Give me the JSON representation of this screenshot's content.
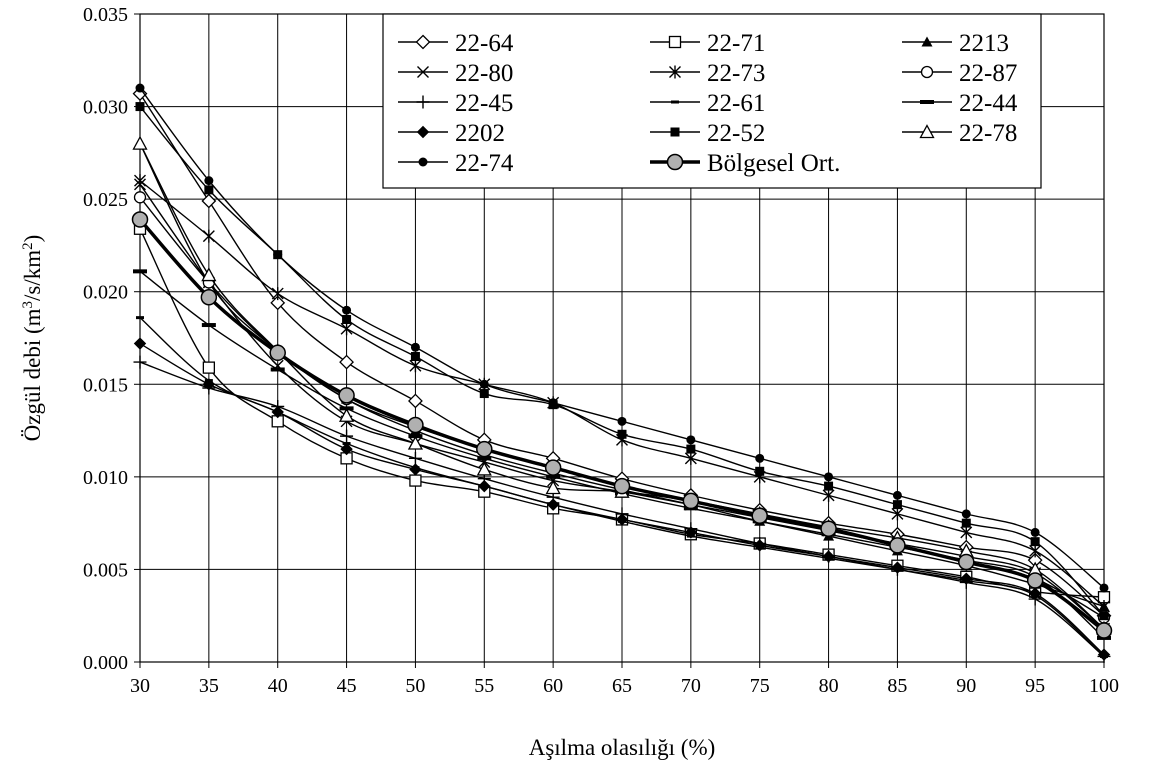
{
  "chart_data": {
    "type": "line",
    "xlabel": "Aşılma olasılığı (%)",
    "ylabel": {
      "prefix": "Özgül debi (m",
      "sup1": "3",
      "mid": "/s/km",
      "sup2": "2",
      "suffix": ")"
    },
    "xlim": [
      30,
      100
    ],
    "ylim": [
      0,
      0.035
    ],
    "x_ticks": [
      "30",
      "35",
      "40",
      "45",
      "50",
      "55",
      "60",
      "65",
      "70",
      "75",
      "80",
      "85",
      "90",
      "95",
      "100"
    ],
    "y_ticks": [
      "0.000",
      "0.005",
      "0.010",
      "0.015",
      "0.020",
      "0.025",
      "0.030",
      "0.035"
    ],
    "grid": true,
    "legend_position": "top-right",
    "x": [
      30,
      35,
      40,
      45,
      50,
      55,
      60,
      65,
      70,
      75,
      80,
      85,
      90,
      95,
      100
    ],
    "series": [
      {
        "name": "22-64",
        "marker": "diamond-open",
        "values": [
          0.0307,
          0.0249,
          0.0194,
          0.0162,
          0.0141,
          0.012,
          0.011,
          0.0099,
          0.009,
          0.0082,
          0.0075,
          0.0069,
          0.0062,
          0.0055,
          0.0025
        ]
      },
      {
        "name": "22-71",
        "marker": "square-open",
        "values": [
          0.0234,
          0.0159,
          0.013,
          0.011,
          0.0098,
          0.0092,
          0.0083,
          0.0077,
          0.0069,
          0.0064,
          0.0058,
          0.0052,
          0.0046,
          0.0038,
          0.0035
        ]
      },
      {
        "name": "2213",
        "marker": "triangle-filled",
        "values": [
          0.028,
          0.0205,
          0.0168,
          0.0142,
          0.0125,
          0.0112,
          0.0102,
          0.0093,
          0.0085,
          0.0076,
          0.0068,
          0.006,
          0.0052,
          0.0042,
          0.003
        ]
      },
      {
        "name": "22-80",
        "marker": "x",
        "values": [
          0.0258,
          0.0205,
          0.016,
          0.013,
          0.0118,
          0.0108,
          0.0098,
          0.0092,
          0.0085,
          0.0078,
          0.0071,
          0.0064,
          0.0057,
          0.0048,
          0.0018
        ]
      },
      {
        "name": "22-73",
        "marker": "star",
        "values": [
          0.026,
          0.023,
          0.0199,
          0.018,
          0.016,
          0.015,
          0.014,
          0.012,
          0.011,
          0.01,
          0.009,
          0.008,
          0.007,
          0.006,
          0.003
        ]
      },
      {
        "name": "22-87",
        "marker": "circle-open",
        "values": [
          0.0251,
          0.0205,
          0.0168,
          0.0142,
          0.0127,
          0.0115,
          0.0105,
          0.0095,
          0.0087,
          0.0079,
          0.0071,
          0.0063,
          0.0054,
          0.0045,
          0.0024
        ]
      },
      {
        "name": "22-45",
        "marker": "plus",
        "values": [
          0.0162,
          0.0148,
          0.0138,
          0.0122,
          0.011,
          0.0099,
          0.0089,
          0.008,
          0.0072,
          0.0064,
          0.0057,
          0.005,
          0.0043,
          0.0034,
          0.0003
        ]
      },
      {
        "name": "22-61",
        "marker": "dash",
        "values": [
          0.0186,
          0.0152,
          0.0135,
          0.0118,
          0.0105,
          0.0095,
          0.0085,
          0.0076,
          0.0068,
          0.0062,
          0.0056,
          0.005,
          0.0044,
          0.0036,
          0.0003
        ]
      },
      {
        "name": "22-44",
        "marker": "dash-long",
        "values": [
          0.0211,
          0.0182,
          0.0158,
          0.0137,
          0.0122,
          0.011,
          0.01,
          0.0091,
          0.0083,
          0.0076,
          0.0069,
          0.0062,
          0.0055,
          0.0046,
          0.0013
        ]
      },
      {
        "name": "2202",
        "marker": "diamond-filled",
        "values": [
          0.0172,
          0.015,
          0.0135,
          0.0115,
          0.0104,
          0.0095,
          0.0085,
          0.0077,
          0.007,
          0.0063,
          0.0057,
          0.0051,
          0.0045,
          0.0037,
          0.0004
        ]
      },
      {
        "name": "22-52",
        "marker": "square-filled",
        "values": [
          0.03,
          0.0255,
          0.022,
          0.0185,
          0.0165,
          0.0145,
          0.0139,
          0.0123,
          0.0115,
          0.0103,
          0.0095,
          0.0085,
          0.0075,
          0.0065,
          0.0025
        ]
      },
      {
        "name": "22-78",
        "marker": "triangle-open",
        "values": [
          0.028,
          0.0209,
          0.0168,
          0.0133,
          0.0118,
          0.0104,
          0.0094,
          0.0092,
          0.0087,
          0.008,
          0.0073,
          0.0067,
          0.006,
          0.005,
          0.0018
        ]
      },
      {
        "name": "22-74",
        "marker": "circle-filled",
        "values": [
          0.031,
          0.026,
          0.022,
          0.019,
          0.017,
          0.015,
          0.014,
          0.013,
          0.012,
          0.011,
          0.01,
          0.009,
          0.008,
          0.007,
          0.004
        ]
      },
      {
        "name": "Bölgesel Ort.",
        "marker": "circle-gray-large",
        "values": [
          0.0239,
          0.0197,
          0.0167,
          0.0144,
          0.0128,
          0.0115,
          0.0105,
          0.0095,
          0.0087,
          0.0079,
          0.0072,
          0.0063,
          0.0054,
          0.0044,
          0.0017
        ]
      }
    ],
    "legend_order": [
      0,
      1,
      2,
      3,
      4,
      5,
      6,
      7,
      8,
      9,
      10,
      11,
      12,
      13
    ]
  }
}
